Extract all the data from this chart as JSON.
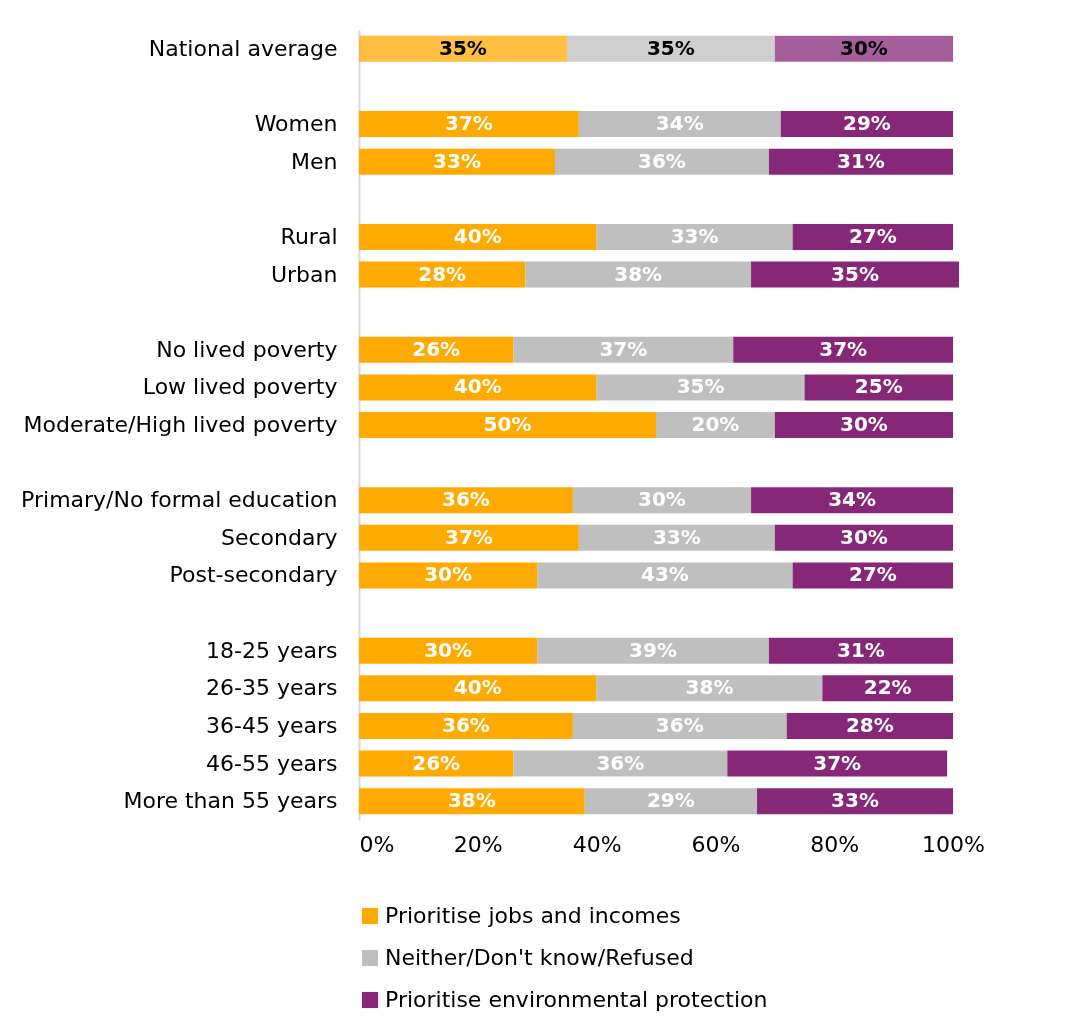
{
  "chart_data": {
    "type": "bar",
    "orientation": "horizontal",
    "stacked": true,
    "categories": [
      "National average",
      null,
      "Women",
      "Men",
      null,
      "Rural",
      "Urban",
      null,
      "No lived poverty",
      "Low lived poverty",
      "Moderate/High lived poverty",
      null,
      "Primary/No formal education",
      "Secondary",
      "Post-secondary",
      null,
      "18-25 years",
      "26-35 years",
      "36-45 years",
      "46-55 years",
      "More than 55 years"
    ],
    "series": [
      {
        "name": "Prioritise jobs and incomes",
        "color": "#ffaa00",
        "values": [
          35,
          null,
          37,
          33,
          null,
          40,
          28,
          null,
          26,
          40,
          50,
          null,
          36,
          37,
          30,
          null,
          30,
          40,
          36,
          26,
          38
        ],
        "value_labels": [
          "35%",
          null,
          "37%",
          "33%",
          null,
          "40%",
          "28%",
          null,
          "26%",
          "40%",
          "50%",
          null,
          "36%",
          "37%",
          "30%",
          null,
          "30%",
          "40%",
          "36%",
          "26%",
          "38%"
        ]
      },
      {
        "name": "Neither/Don't know/Refused",
        "color": "#bfbfbf",
        "values": [
          35,
          null,
          34,
          36,
          null,
          33,
          38,
          null,
          37,
          35,
          20,
          null,
          30,
          33,
          43,
          null,
          39,
          38,
          36,
          36,
          29
        ],
        "value_labels": [
          "35%",
          null,
          "34%",
          "36%",
          null,
          "33%",
          "38%",
          null,
          "37%",
          "35%",
          "20%",
          null,
          "30%",
          "33%",
          "43%",
          null,
          "39%",
          "38%",
          "36%",
          "36%",
          "29%"
        ]
      },
      {
        "name": "Prioritise environmental protection",
        "color": "#862877",
        "values": [
          30,
          null,
          29,
          31,
          null,
          27,
          35,
          null,
          37,
          25,
          30,
          null,
          34,
          30,
          27,
          null,
          31,
          22,
          28,
          37,
          33
        ],
        "value_labels": [
          "30%",
          null,
          "29%",
          "31%",
          null,
          "27%",
          "35%",
          null,
          "37%",
          "25%",
          "30%",
          null,
          "34%",
          "30%",
          "27%",
          null,
          "31%",
          "22%",
          "28%",
          "37%",
          "33%"
        ]
      }
    ],
    "xlim": [
      0,
      101
    ],
    "xticks": [
      {
        "value": 0,
        "label": "0%"
      },
      {
        "value": 20,
        "label": "20%"
      },
      {
        "value": 40,
        "label": "40%"
      },
      {
        "value": 60,
        "label": "60%"
      },
      {
        "value": 80,
        "label": "80%"
      },
      {
        "value": 100,
        "label": "100%"
      }
    ],
    "grid": false,
    "legend": "bottom"
  }
}
